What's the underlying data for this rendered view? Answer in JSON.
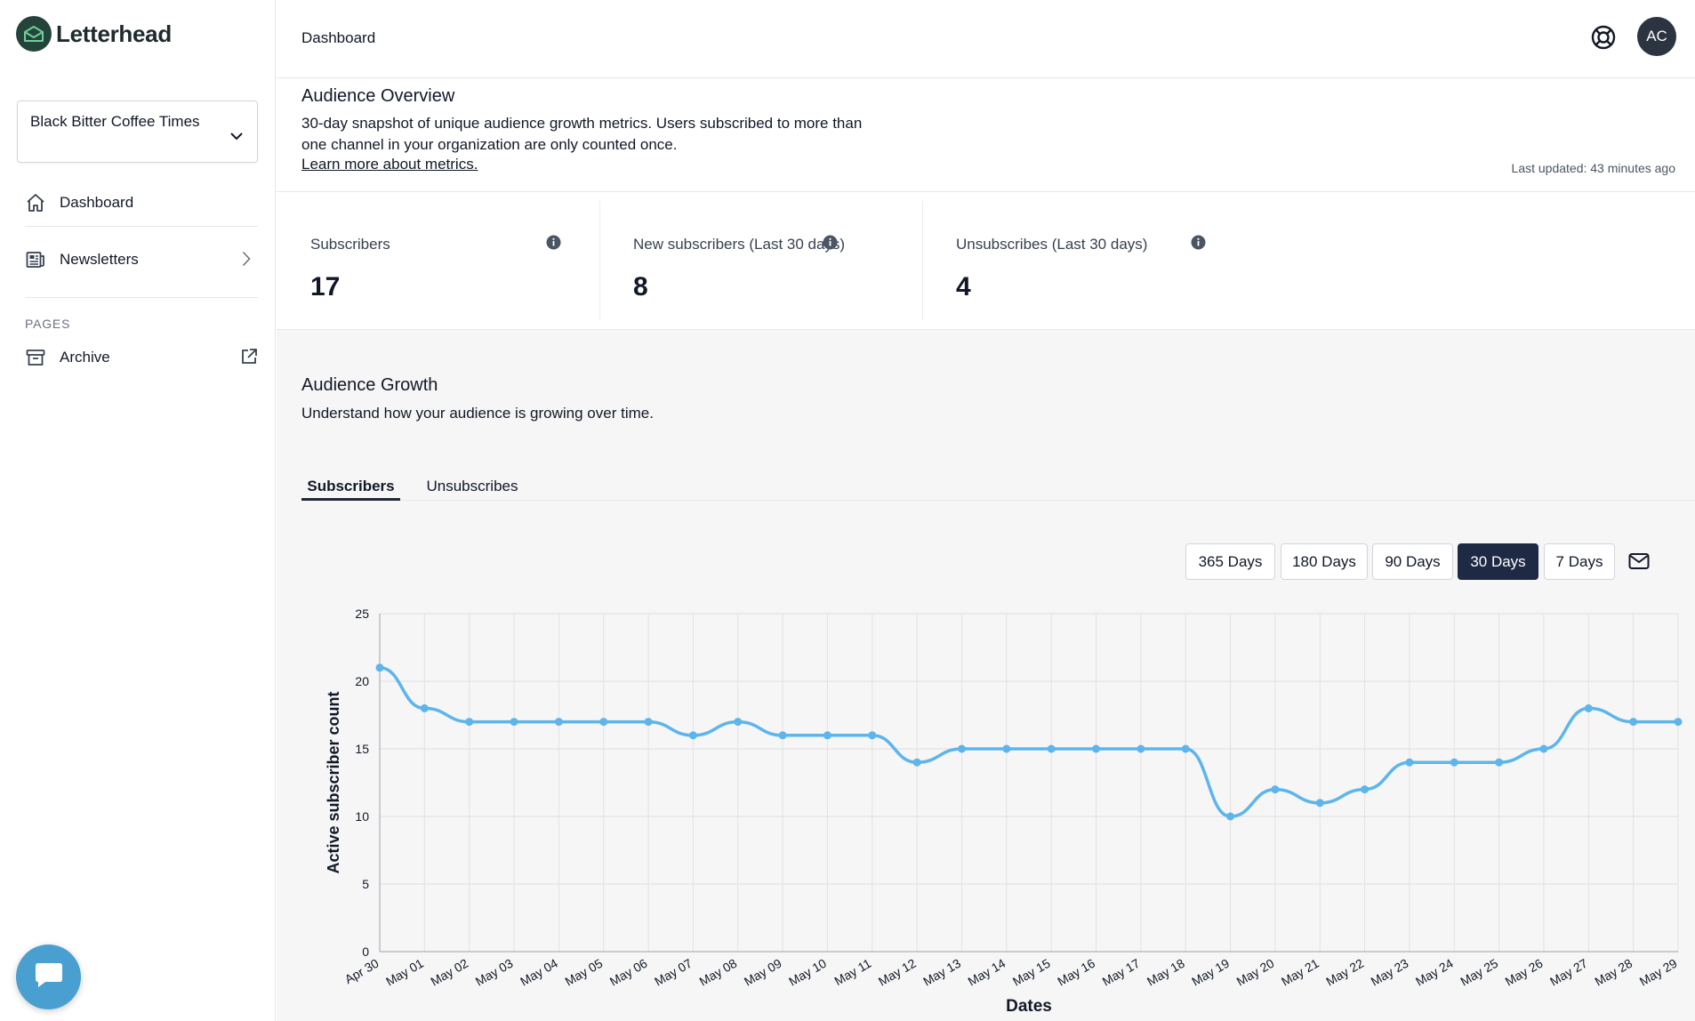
{
  "app": {
    "name": "Letterhead"
  },
  "sidebar": {
    "org_select": {
      "value": "Black Bitter Coffee Times"
    },
    "nav": [
      {
        "label": "Dashboard",
        "icon": "home-icon"
      },
      {
        "label": "Newsletters",
        "icon": "newspaper-icon"
      }
    ],
    "pages_section": "PAGES",
    "pages": [
      {
        "label": "Archive",
        "icon": "archive-icon"
      }
    ]
  },
  "topbar": {
    "breadcrumb": "Dashboard",
    "avatar_initials": "AC"
  },
  "overview": {
    "title": "Audience Overview",
    "description": "30-day snapshot of unique audience growth metrics. Users subscribed to more than one channel in your organization are only counted once.",
    "link": "Learn more about metrics.",
    "last_updated": "Last updated: 43 minutes ago"
  },
  "stats": [
    {
      "label": "Subscribers",
      "value": "17"
    },
    {
      "label": "New subscribers (Last 30 days)",
      "value": "8"
    },
    {
      "label": "Unsubscribes (Last 30 days)",
      "value": "4"
    }
  ],
  "growth": {
    "title": "Audience Growth",
    "description": "Understand how your audience is growing over time.",
    "tabs": [
      {
        "label": "Subscribers",
        "active": true
      },
      {
        "label": "Unsubscribes",
        "active": false
      }
    ],
    "ranges": [
      {
        "label": "365 Days",
        "active": false
      },
      {
        "label": "180 Days",
        "active": false
      },
      {
        "label": "90 Days",
        "active": false
      },
      {
        "label": "30 Days",
        "active": true
      },
      {
        "label": "7 Days",
        "active": false
      }
    ]
  },
  "colors": {
    "accent": "#1e2a44",
    "line": "#5db5ec",
    "brand": "#24433b"
  },
  "chart_data": {
    "type": "line",
    "xlabel": "Dates",
    "ylabel": "Active subscriber count",
    "ylim": [
      0,
      25
    ],
    "yticks": [
      0,
      5,
      10,
      15,
      20,
      25
    ],
    "grid": true,
    "categories": [
      "Apr 30",
      "May 01",
      "May 02",
      "May 03",
      "May 04",
      "May 05",
      "May 06",
      "May 07",
      "May 08",
      "May 09",
      "May 10",
      "May 11",
      "May 12",
      "May 13",
      "May 14",
      "May 15",
      "May 16",
      "May 17",
      "May 18",
      "May 19",
      "May 20",
      "May 21",
      "May 22",
      "May 23",
      "May 24",
      "May 25",
      "May 26",
      "May 27",
      "May 28",
      "May 29"
    ],
    "series": [
      {
        "values": [
          21,
          18,
          17,
          17,
          17,
          17,
          17,
          16,
          17,
          16,
          16,
          16,
          14,
          15,
          15,
          15,
          15,
          15,
          15,
          10,
          12,
          11,
          12,
          14,
          14,
          14,
          15,
          18,
          17,
          17
        ]
      }
    ]
  }
}
